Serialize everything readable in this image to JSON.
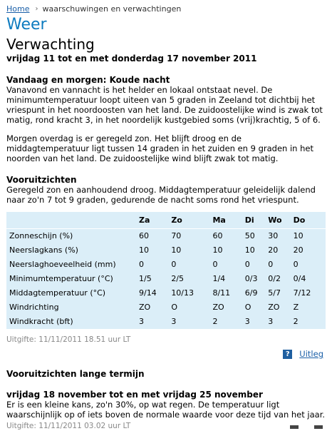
{
  "breadcrumb": {
    "home": "Home",
    "current": "waarschuwingen en verwachtingen"
  },
  "section_title": "Weer",
  "page_heading": "Verwachting",
  "date_range": "vrijdag 11 tot en met donderdag 17 november 2011",
  "today": {
    "title": "Vandaag en morgen: Koude nacht",
    "para1": "Vanavond en vannacht is het helder en lokaal ontstaat nevel. De minimumtemperatuur loopt uiteen van 5 graden in Zeeland tot dichtbij het vriespunt in het noordoosten van het land. De zuidoostelijke wind is zwak tot matig, rond kracht 3, in het noordelijk kustgebied soms (vrij)krachtig, 5 of 6.",
    "para2": "Morgen overdag is er geregeld zon. Het blijft droog en de middagtemperatuur ligt tussen 14 graden in het zuiden en 9 graden in het noorden van het land. De zuidoostelijke wind blijft zwak tot matig."
  },
  "outlook": {
    "title": "Vooruitzichten",
    "text": "Geregeld zon en aanhoudend droog. Middagtemperatuur geleidelijk dalend naar zo'n 7 tot 9 graden, gedurende de nacht soms rond het vriespunt."
  },
  "table": {
    "days": [
      "Za",
      "Zo",
      "Ma",
      "Di",
      "Wo",
      "Do"
    ],
    "rows": [
      {
        "label": "Zonneschijn (%)",
        "values": [
          "60",
          "70",
          "60",
          "50",
          "30",
          "10"
        ]
      },
      {
        "label": "Neerslagkans (%)",
        "values": [
          "10",
          "10",
          "10",
          "10",
          "20",
          "20"
        ]
      },
      {
        "label": "Neerslaghoeveelheid (mm)",
        "values": [
          "0",
          "0",
          "0",
          "0",
          "0",
          "0"
        ]
      },
      {
        "label": "Minimumtemperatuur (°C)",
        "values": [
          "1/5",
          "2/5",
          "1/4",
          "0/3",
          "0/2",
          "0/4"
        ]
      },
      {
        "label": "Middagtemperatuur (°C)",
        "values": [
          "9/14",
          "10/13",
          "8/11",
          "6/9",
          "5/7",
          "7/12"
        ]
      },
      {
        "label": "Windrichting",
        "values": [
          "ZO",
          "O",
          "ZO",
          "O",
          "ZO",
          "Z"
        ]
      },
      {
        "label": "Windkracht (bft)",
        "values": [
          "3",
          "3",
          "2",
          "3",
          "3",
          "2"
        ]
      }
    ]
  },
  "issued": "Uitgifte: 11/11/2011 18.51 uur LT",
  "help": {
    "icon": "?",
    "label": "Uitleg"
  },
  "longterm": {
    "title": "Vooruitzichten lange termijn",
    "range": "vrijdag 18 november tot en met vrijdag 25 november",
    "text": "Er is een kleine kans, zo'n 30%, op wat regen. De temperatuur ligt waarschijnlijk op of iets boven de normale waarde voor deze tijd van het jaar.",
    "issued": "Uitgifte: 11/11/2011 03.02 uur LT"
  },
  "colors": {
    "accent": "#0d7bbf",
    "link": "#1a5fa8",
    "table_bg": "#dbeef8",
    "muted": "#888888"
  }
}
